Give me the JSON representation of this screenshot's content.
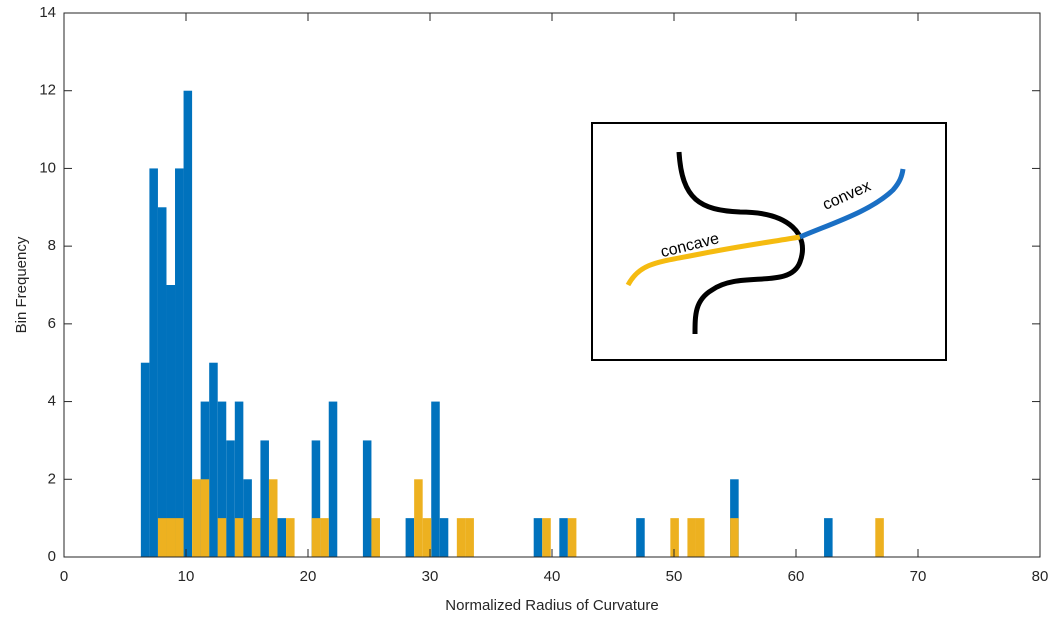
{
  "chart_data": {
    "type": "histogram",
    "xlabel": "Normalized Radius of Curvature",
    "ylabel": "Bin Frequency",
    "xlim": [
      0,
      80
    ],
    "xticks": [
      0,
      10,
      20,
      30,
      40,
      50,
      60,
      70,
      80
    ],
    "ylim": [
      0,
      14
    ],
    "yticks": [
      0,
      2,
      4,
      6,
      8,
      10,
      12,
      14
    ],
    "grid": false,
    "bins": [
      6.3,
      7,
      7.7,
      8.4,
      9.1,
      9.8,
      10.5,
      11.2,
      11.9,
      12.6,
      13.3,
      14,
      14.7,
      15.4,
      16.1,
      16.8,
      17.5,
      18.2,
      18.9,
      19.6,
      20.3,
      21,
      21.7,
      22.4,
      23.1,
      23.8,
      24.5,
      25.2,
      25.9,
      26.6,
      27.3,
      28,
      28.7,
      29.4,
      30.1,
      30.8,
      31.5,
      32.2,
      32.9,
      33.6,
      34.3,
      35,
      35.7,
      36.4,
      37.1,
      37.8,
      38.5,
      39.2,
      39.9,
      40.6,
      41.3,
      42,
      42.7,
      43.4,
      44.1,
      44.8,
      45.5,
      46.2,
      46.9,
      47.6,
      48.3,
      49,
      49.7,
      50.4,
      51.1,
      51.8,
      52.5,
      53.2,
      53.9,
      54.6,
      55.3,
      56,
      56.7,
      57.4,
      58.1,
      58.8,
      59.5,
      60.2,
      60.9,
      61.6,
      62.3,
      63,
      63.7,
      64.4,
      65.1,
      65.8,
      66.5,
      67.2
    ],
    "series": [
      {
        "color": "#0072bd",
        "values": [
          5,
          10,
          9,
          7,
          10,
          12,
          0,
          4,
          5,
          4,
          3,
          4,
          2,
          1,
          3,
          0,
          1,
          0,
          0,
          0,
          3,
          0,
          4,
          0,
          0,
          0,
          3,
          0,
          0,
          0,
          0,
          1,
          0,
          0,
          4,
          1,
          0,
          0,
          0,
          0,
          0,
          0,
          0,
          0,
          0,
          0,
          1,
          0,
          0,
          1,
          0,
          0,
          0,
          0,
          0,
          0,
          0,
          0,
          1,
          0,
          0,
          0,
          0,
          0,
          0,
          0,
          0,
          0,
          0,
          2,
          0,
          0,
          0,
          0,
          0,
          0,
          0,
          0,
          0,
          0,
          1,
          0,
          0,
          0,
          0,
          0,
          0
        ]
      },
      {
        "color": "#edb120",
        "values": [
          0,
          0,
          1,
          1,
          1,
          0,
          2,
          2,
          0,
          1,
          0,
          1,
          0,
          1,
          0,
          2,
          0,
          1,
          0,
          0,
          1,
          1,
          0,
          0,
          0,
          0,
          0,
          1,
          0,
          0,
          0,
          0,
          2,
          1,
          0,
          0,
          0,
          1,
          1,
          0,
          0,
          0,
          0,
          0,
          0,
          0,
          0,
          1,
          0,
          0,
          1,
          0,
          0,
          0,
          0,
          0,
          0,
          0,
          0,
          0,
          0,
          0,
          1,
          0,
          1,
          1,
          0,
          0,
          0,
          1,
          0,
          0,
          0,
          0,
          0,
          0,
          0,
          0,
          0,
          0,
          0,
          0,
          0,
          0,
          0,
          0,
          1
        ]
      }
    ],
    "annotations": [
      "concave",
      "convex"
    ]
  }
}
